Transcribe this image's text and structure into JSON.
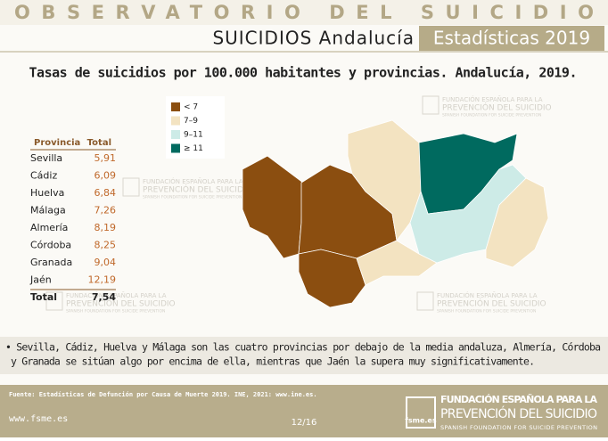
{
  "header": {
    "observatory": "OBSERVATORIO DEL SUICIDIO",
    "subtitle": "SUICIDIOS Andalucía",
    "badge": "Estadísticas 2019"
  },
  "title": "Tasas de suicidios por 100.000 habitantes y provincias. Andalucía, 2019.",
  "table": {
    "columns": [
      "Provincia",
      "Total"
    ],
    "rows": [
      [
        "Sevilla",
        "5,91"
      ],
      [
        "Cádiz",
        "6,09"
      ],
      [
        "Huelva",
        "6,84"
      ],
      [
        "Málaga",
        "7,26"
      ],
      [
        "Almería",
        "8,19"
      ],
      [
        "Córdoba",
        "8,25"
      ],
      [
        "Granada",
        "9,04"
      ],
      [
        "Jaén",
        "12,19"
      ]
    ],
    "total": [
      "Total",
      "7,54"
    ]
  },
  "legend": {
    "items": [
      {
        "label": "< 7",
        "color": "#8b4e10"
      },
      {
        "label": "7–9",
        "color": "#f3e3c1"
      },
      {
        "label": "9–11",
        "color": "#cdebe7"
      },
      {
        "label": "≥ 11",
        "color": "#006a5f"
      }
    ]
  },
  "watermark": {
    "logo": "fsme.es",
    "line1": "FUNDACIÓN ESPAÑOLA PARA LA",
    "line2": "PREVENCIÓN DEL SUICIDIO",
    "line3": "SPANISH FOUNDATION FOR SUICIDE PREVENTION"
  },
  "bullet": {
    "lines": [
      "• Sevilla, Cádiz, Huelva y Málaga son las cuatro provincias por debajo de la media andaluza, Almería, Córdoba",
      "y Granada se sitúan algo por encima de ella, mientras que Jaén la supera muy significativamente."
    ]
  },
  "footer": {
    "source": "Fuente: Estadísticas de Defunción por Causa de Muerte 2019. INE, 2021: www.ine.es.",
    "url": "www.fsme.es",
    "page": "12/16"
  }
}
